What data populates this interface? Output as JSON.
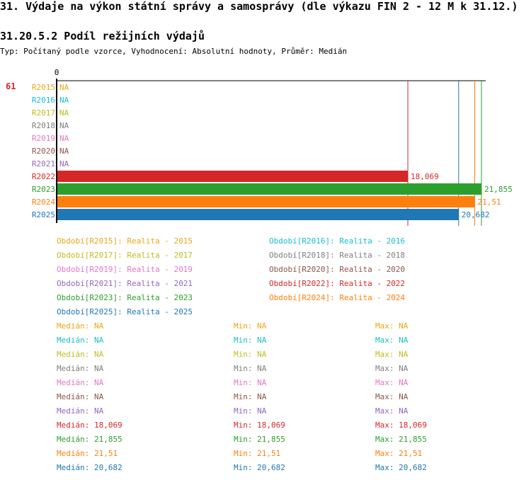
{
  "page": {
    "title": "31. Výdaje na výkon státní správy a samosprávy (dle výkazu FIN 2 - 12 M k 31.12.)",
    "subtitle": "31.20.5.2 Podíl režijních výdajů",
    "meta": "Typ: Počítaný podle vzorce, Vyhodnocení: Absolutní hodnoty, Průměr: Medián",
    "rank": "61"
  },
  "chart_data": {
    "type": "bar",
    "orientation": "horizontal",
    "x_axis_tick": "0",
    "xlim": [
      0,
      22.5
    ],
    "categories": [
      "R2015",
      "R2016",
      "R2017",
      "R2018",
      "R2019",
      "R2020",
      "R2021",
      "R2022",
      "R2023",
      "R2024",
      "R2025"
    ],
    "values": [
      null,
      null,
      null,
      null,
      null,
      null,
      null,
      18.069,
      21.855,
      21.51,
      20.682
    ],
    "value_labels": [
      "NA",
      "NA",
      "NA",
      "NA",
      "NA",
      "NA",
      "NA",
      "18,069",
      "21,855",
      "21,51",
      "20,682"
    ],
    "colors": [
      "#e6a817",
      "#17becf",
      "#bcbd22",
      "#7f7f7f",
      "#e377c2",
      "#8c564b",
      "#9467bd",
      "#d62728",
      "#2ca02c",
      "#ff7f0e",
      "#1f77b4"
    ],
    "reference_lines": [
      {
        "value": 18.069,
        "color": "#d62728"
      },
      {
        "value": 20.682,
        "color": "#1f77b4"
      },
      {
        "value": 21.51,
        "color": "#ff7f0e"
      },
      {
        "value": 21.855,
        "color": "#2ca02c"
      }
    ]
  },
  "legend": [
    {
      "code": "Období[R2015]:",
      "label": "Realita - 2015",
      "color": "#e6a817"
    },
    {
      "code": "Období[R2016]:",
      "label": "Realita - 2016",
      "color": "#17becf"
    },
    {
      "code": "Období[R2017]:",
      "label": "Realita - 2017",
      "color": "#bcbd22"
    },
    {
      "code": "Období[R2018]:",
      "label": "Realita - 2018",
      "color": "#7f7f7f"
    },
    {
      "code": "Období[R2019]:",
      "label": "Realita - 2019",
      "color": "#e377c2"
    },
    {
      "code": "Období[R2020]:",
      "label": "Realita - 2020",
      "color": "#8c564b"
    },
    {
      "code": "Období[R2021]:",
      "label": "Realita - 2021",
      "color": "#9467bd"
    },
    {
      "code": "Období[R2022]:",
      "label": "Realita - 2022",
      "color": "#d62728"
    },
    {
      "code": "Období[R2023]:",
      "label": "Realita - 2023",
      "color": "#2ca02c"
    },
    {
      "code": "Období[R2024]:",
      "label": "Realita - 2024",
      "color": "#ff7f0e"
    },
    {
      "code": "Období[R2025]:",
      "label": "Realita - 2025",
      "color": "#1f77b4"
    }
  ],
  "stats": [
    {
      "median": "Medián: NA",
      "min": "Min: NA",
      "max": "Max: NA",
      "color": "#e6a817"
    },
    {
      "median": "Medián: NA",
      "min": "Min: NA",
      "max": "Max: NA",
      "color": "#17becf"
    },
    {
      "median": "Medián: NA",
      "min": "Min: NA",
      "max": "Max: NA",
      "color": "#bcbd22"
    },
    {
      "median": "Medián: NA",
      "min": "Min: NA",
      "max": "Max: NA",
      "color": "#7f7f7f"
    },
    {
      "median": "Medián: NA",
      "min": "Min: NA",
      "max": "Max: NA",
      "color": "#e377c2"
    },
    {
      "median": "Medián: NA",
      "min": "Min: NA",
      "max": "Max: NA",
      "color": "#8c564b"
    },
    {
      "median": "Medián: NA",
      "min": "Min: NA",
      "max": "Max: NA",
      "color": "#9467bd"
    },
    {
      "median": "Medián: 18,069",
      "min": "Min: 18,069",
      "max": "Max: 18,069",
      "color": "#d62728"
    },
    {
      "median": "Medián: 21,855",
      "min": "Min: 21,855",
      "max": "Max: 21,855",
      "color": "#2ca02c"
    },
    {
      "median": "Medián: 21,51",
      "min": "Min: 21,51",
      "max": "Max: 21,51",
      "color": "#ff7f0e"
    },
    {
      "median": "Medián: 20,682",
      "min": "Min: 20,682",
      "max": "Max: 20,682",
      "color": "#1f77b4"
    }
  ]
}
